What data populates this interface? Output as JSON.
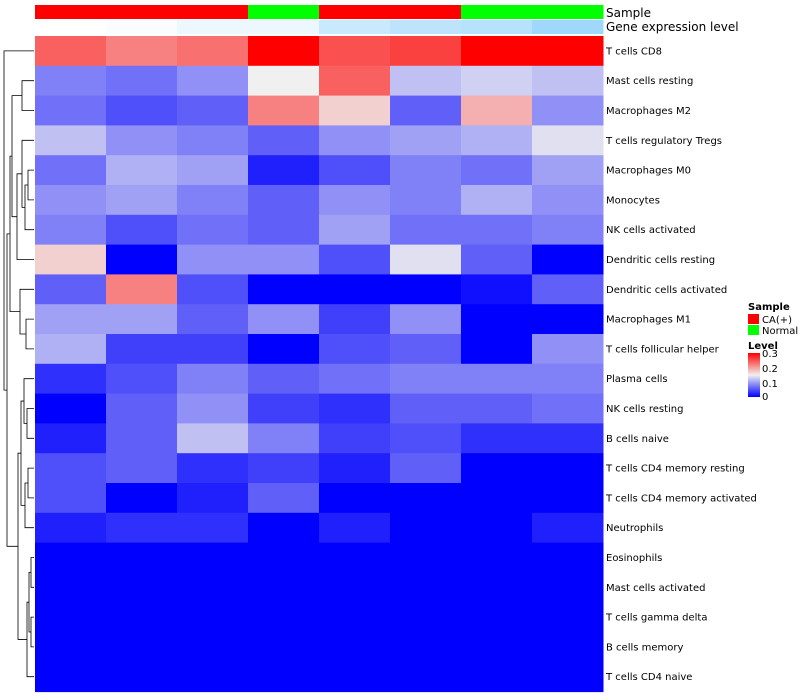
{
  "chart_data": {
    "type": "heatmap",
    "title": "",
    "annotation_tracks": {
      "sample": {
        "label": "Sample",
        "values": [
          "CA(+)",
          "CA(+)",
          "CA(+)",
          "Normal",
          "CA(+)",
          "CA(+)",
          "Normal",
          "Normal"
        ]
      },
      "gene_expression": {
        "label": "Gene expression level",
        "values": [
          0.0,
          0.05,
          0.15,
          0.15,
          0.45,
          0.55,
          0.6,
          0.8
        ]
      }
    },
    "rows": [
      "T cells CD8",
      "Mast cells resting",
      "Macrophages M2",
      "T cells regulatory  Tregs",
      "Macrophages M0",
      "Monocytes",
      "NK cells activated",
      "Dendritic cells resting",
      "Dendritic cells activated",
      "Macrophages M1",
      "T cells follicular helper",
      "Plasma cells",
      "NK cells resting",
      "B cells naive",
      "T cells CD4 memory resting",
      "T cells CD4 memory activated",
      "Neutrophils",
      "Eosinophils",
      "Mast cells activated",
      "T cells gamma delta",
      "B cells memory",
      "T cells CD4 naive"
    ],
    "values": [
      [
        0.24,
        0.22,
        0.23,
        0.3,
        0.25,
        0.26,
        0.3,
        0.3
      ],
      [
        0.08,
        0.07,
        0.09,
        0.15,
        0.24,
        0.12,
        0.13,
        0.12
      ],
      [
        0.07,
        0.05,
        0.06,
        0.22,
        0.17,
        0.06,
        0.19,
        0.09
      ],
      [
        0.12,
        0.09,
        0.08,
        0.06,
        0.09,
        0.1,
        0.11,
        0.14
      ],
      [
        0.07,
        0.11,
        0.1,
        0.02,
        0.05,
        0.08,
        0.07,
        0.1
      ],
      [
        0.09,
        0.1,
        0.08,
        0.06,
        0.09,
        0.08,
        0.11,
        0.09
      ],
      [
        0.08,
        0.05,
        0.07,
        0.06,
        0.1,
        0.07,
        0.07,
        0.08
      ],
      [
        0.17,
        0.0,
        0.09,
        0.09,
        0.05,
        0.14,
        0.06,
        0.0
      ],
      [
        0.06,
        0.22,
        0.05,
        0.0,
        0.0,
        0.0,
        0.01,
        0.06
      ],
      [
        0.1,
        0.1,
        0.06,
        0.09,
        0.04,
        0.09,
        0.0,
        0.0
      ],
      [
        0.11,
        0.04,
        0.04,
        0.0,
        0.05,
        0.06,
        0.0,
        0.09
      ],
      [
        0.03,
        0.05,
        0.08,
        0.06,
        0.07,
        0.08,
        0.08,
        0.08
      ],
      [
        0.0,
        0.06,
        0.09,
        0.04,
        0.03,
        0.06,
        0.06,
        0.07
      ],
      [
        0.02,
        0.06,
        0.12,
        0.08,
        0.04,
        0.05,
        0.03,
        0.03
      ],
      [
        0.05,
        0.06,
        0.03,
        0.04,
        0.02,
        0.06,
        0.0,
        0.0
      ],
      [
        0.05,
        0.0,
        0.02,
        0.06,
        0.0,
        0.0,
        0.0,
        0.0
      ],
      [
        0.02,
        0.03,
        0.03,
        0.0,
        0.02,
        0.0,
        0.0,
        0.02
      ],
      [
        0.0,
        0.0,
        0.0,
        0.0,
        0.0,
        0.0,
        0.0,
        0.0
      ],
      [
        0.0,
        0.0,
        0.0,
        0.0,
        0.0,
        0.0,
        0.0,
        0.0
      ],
      [
        0.0,
        0.0,
        0.0,
        0.0,
        0.0,
        0.0,
        0.0,
        0.0
      ],
      [
        0.0,
        0.0,
        0.0,
        0.0,
        0.0,
        0.0,
        0.0,
        0.0
      ],
      [
        0.0,
        0.0,
        0.0,
        0.0,
        0.0,
        0.0,
        0.0,
        0.0
      ]
    ],
    "color_scale": {
      "low": "#0000ff",
      "mid": "#f0f0f0",
      "high": "#ff0000",
      "range": [
        0,
        0.3
      ]
    },
    "legend": {
      "placement": "right",
      "sample_title": "Sample",
      "sample_entries": [
        {
          "label": "CA(+)",
          "color": "#ff0000"
        },
        {
          "label": "Normal",
          "color": "#00ff00"
        }
      ],
      "level_title": "Level",
      "level_ticks": [
        "0.3",
        "0.2",
        "0.1",
        "0"
      ]
    },
    "row_dendrogram": true
  }
}
